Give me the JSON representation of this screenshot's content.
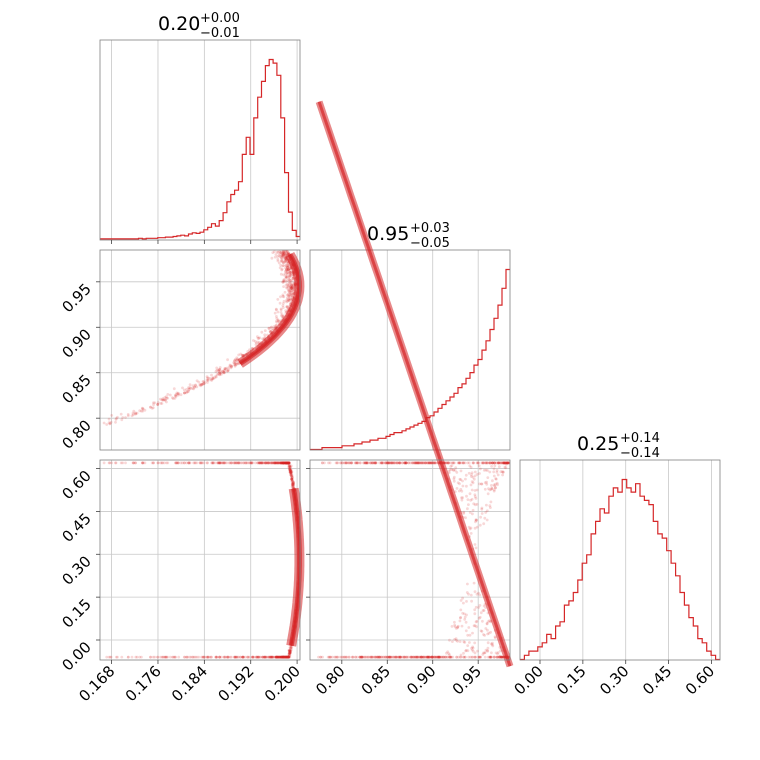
{
  "chart_data": {
    "type": "corner",
    "color": "#d62728",
    "grid": true,
    "parameters": [
      {
        "range": [
          0.166,
          0.2005
        ],
        "ticks": [
          "0.168",
          "0.176",
          "0.184",
          "0.192",
          "0.200"
        ],
        "tick_values": [
          0.168,
          0.176,
          0.184,
          0.192,
          0.2
        ]
      },
      {
        "range": [
          0.765,
          0.985
        ],
        "ticks": [
          "0.80",
          "0.85",
          "0.90",
          "0.95"
        ],
        "tick_values": [
          0.8,
          0.85,
          0.9,
          0.95
        ]
      },
      {
        "range": [
          -0.07,
          0.63
        ],
        "ticks": [
          "0.00",
          "0.15",
          "0.30",
          "0.45",
          "0.60"
        ],
        "tick_values": [
          0.0,
          0.15,
          0.3,
          0.45,
          0.6
        ]
      }
    ],
    "titles": [
      {
        "value": "0.20",
        "upper": "+0.00",
        "lower": "−0.01"
      },
      {
        "value": "0.95",
        "upper": "+0.03",
        "lower": "−0.05"
      },
      {
        "value": "0.25",
        "upper": "+0.14",
        "lower": "−0.14"
      }
    ],
    "histograms": [
      {
        "edges_from": 0.166,
        "edges_to": 0.2005,
        "counts": [
          1,
          1,
          1,
          1,
          1,
          1,
          1,
          1,
          1,
          1,
          2,
          1,
          2,
          2,
          2,
          3,
          3,
          4,
          4,
          5,
          6,
          7,
          6,
          9,
          11,
          10,
          12,
          16,
          20,
          26,
          22,
          31,
          44,
          62,
          74,
          81,
          95,
          140,
          168,
          140,
          200,
          234,
          260,
          286,
          296,
          290,
          270,
          200,
          110,
          45,
          15,
          5
        ]
      },
      {
        "edges_from": 0.765,
        "edges_to": 0.985,
        "counts": [
          0,
          0,
          0,
          1,
          1,
          1,
          1,
          1,
          2,
          2,
          2,
          3,
          3,
          4,
          4,
          5,
          5,
          6,
          6,
          7,
          8,
          9,
          9,
          10,
          11,
          12,
          13,
          14,
          15,
          17,
          18,
          20,
          22,
          24,
          26,
          28,
          30,
          33,
          35,
          38,
          41,
          45,
          48,
          53,
          58,
          64,
          70,
          77,
          86,
          96
        ]
      },
      {
        "edges_from": -0.07,
        "edges_to": 0.63,
        "counts": [
          0,
          1,
          2,
          2,
          3,
          4,
          6,
          5,
          8,
          9,
          13,
          14,
          16,
          19,
          23,
          25,
          30,
          33,
          36,
          35,
          39,
          41,
          40,
          43,
          41,
          40,
          42,
          39,
          38,
          37,
          33,
          30,
          29,
          26,
          23,
          20,
          16,
          13,
          10,
          8,
          5,
          4,
          2,
          1,
          0
        ]
      }
    ],
    "pairs": [
      {
        "x_param": 0,
        "y_param": 1,
        "relation": "p0 = 0.200 - 0.2*(1.002 - p1)^2 approx; banana-shaped density peaking at p0 = 0.200"
      },
      {
        "x_param": 0,
        "y_param": 2,
        "relation": "crescent opening left, vertex near p0 = 0.200, p2 = 0.28"
      },
      {
        "x_param": 1,
        "y_param": 2,
        "relation": "thin curved ridge from (0.78, 0.61) down to (0.985, 0.00)"
      }
    ]
  }
}
